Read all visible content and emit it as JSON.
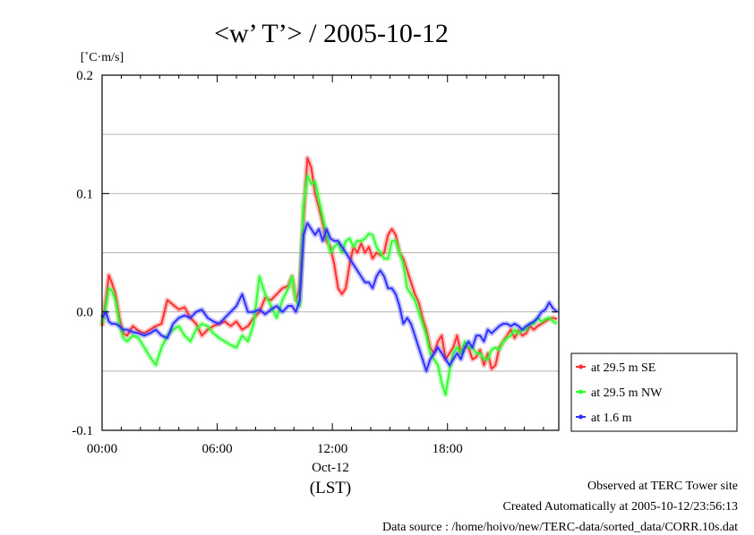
{
  "chart_data": {
    "type": "line",
    "title": "<w’ T’> / 2005-10-12",
    "ylabel": "[˚C·m/s]",
    "ylim": [
      -0.1,
      0.2
    ],
    "yticks": [
      {
        "value": 0.2,
        "label": "0.2"
      },
      {
        "value": 0.1,
        "label": "0.1"
      },
      {
        "value": 0.0,
        "label": "0.0"
      },
      {
        "value": -0.1,
        "label": "-0.1"
      }
    ],
    "ygrid": [
      0.15,
      0.1,
      0.05,
      0.0,
      -0.05
    ],
    "xlim": [
      0,
      23.8
    ],
    "xticks": [
      {
        "value": 0,
        "label": "00:00"
      },
      {
        "value": 6,
        "label": "06:00"
      },
      {
        "value": 12,
        "label": "12:00"
      },
      {
        "value": 18,
        "label": "18:00"
      }
    ],
    "xdate_label": "Oct-12",
    "xunit_label": "(LST)",
    "legend_position": "right",
    "series": [
      {
        "name": "at 29.5 m SE",
        "color": "#ff3030",
        "x": [
          0,
          0.2,
          0.35,
          0.5,
          0.7,
          0.9,
          1.1,
          1.3,
          1.6,
          1.9,
          2.2,
          2.5,
          2.8,
          3.1,
          3.4,
          3.7,
          4.0,
          4.3,
          4.6,
          4.9,
          5.2,
          5.5,
          5.8,
          6.1,
          6.4,
          6.7,
          7.0,
          7.3,
          7.6,
          7.9,
          8.2,
          8.5,
          8.8,
          9.1,
          9.4,
          9.7,
          9.9,
          10.1,
          10.3,
          10.5,
          10.7,
          10.9,
          11.1,
          11.3,
          11.5,
          11.7,
          11.9,
          12.1,
          12.3,
          12.5,
          12.7,
          12.9,
          13.1,
          13.3,
          13.5,
          13.7,
          13.9,
          14.1,
          14.3,
          14.5,
          14.7,
          14.9,
          15.1,
          15.3,
          15.5,
          15.7,
          15.9,
          16.1,
          16.3,
          16.5,
          16.7,
          16.9,
          17.1,
          17.3,
          17.5,
          17.7,
          17.9,
          18.1,
          18.3,
          18.5,
          18.7,
          18.9,
          19.1,
          19.3,
          19.5,
          19.7,
          19.9,
          20.1,
          20.3,
          20.5,
          20.7,
          20.9,
          21.1,
          21.3,
          21.5,
          21.7,
          21.9,
          22.1,
          22.3,
          22.5,
          22.7,
          22.9,
          23.1,
          23.3,
          23.5,
          23.7
        ],
        "values": [
          -0.012,
          0.01,
          0.031,
          0.025,
          0.015,
          -0.005,
          -0.018,
          -0.02,
          -0.012,
          -0.016,
          -0.018,
          -0.015,
          -0.012,
          -0.01,
          0.01,
          0.006,
          0.002,
          0.004,
          -0.005,
          -0.01,
          -0.02,
          -0.015,
          -0.012,
          -0.01,
          -0.008,
          -0.012,
          -0.008,
          -0.015,
          -0.012,
          -0.005,
          0.0,
          0.012,
          0.01,
          0.015,
          0.02,
          0.022,
          0.03,
          0.01,
          0.02,
          0.08,
          0.13,
          0.122,
          0.1,
          0.088,
          0.075,
          0.06,
          0.055,
          0.04,
          0.02,
          0.015,
          0.02,
          0.04,
          0.055,
          0.05,
          0.058,
          0.05,
          0.055,
          0.045,
          0.05,
          0.048,
          0.05,
          0.065,
          0.07,
          0.065,
          0.05,
          0.045,
          0.035,
          0.025,
          0.015,
          0.008,
          -0.005,
          -0.015,
          -0.03,
          -0.035,
          -0.025,
          -0.02,
          -0.04,
          -0.035,
          -0.03,
          -0.02,
          -0.035,
          -0.03,
          -0.03,
          -0.04,
          -0.038,
          -0.032,
          -0.045,
          -0.035,
          -0.048,
          -0.045,
          -0.03,
          -0.025,
          -0.02,
          -0.015,
          -0.022,
          -0.016,
          -0.02,
          -0.018,
          -0.012,
          -0.015,
          -0.012,
          -0.01,
          -0.008,
          -0.006,
          -0.005,
          -0.006
        ]
      },
      {
        "name": "at 29.5 m NW",
        "color": "#30ff30",
        "x": [
          0,
          0.2,
          0.35,
          0.5,
          0.7,
          0.9,
          1.1,
          1.3,
          1.6,
          1.9,
          2.2,
          2.5,
          2.8,
          3.1,
          3.4,
          3.7,
          4.0,
          4.3,
          4.6,
          4.9,
          5.2,
          5.5,
          5.8,
          6.1,
          6.4,
          6.7,
          7.0,
          7.3,
          7.6,
          7.9,
          8.2,
          8.5,
          8.8,
          9.1,
          9.4,
          9.7,
          9.9,
          10.1,
          10.3,
          10.5,
          10.7,
          10.9,
          11.1,
          11.3,
          11.5,
          11.7,
          11.9,
          12.1,
          12.3,
          12.5,
          12.7,
          12.9,
          13.1,
          13.3,
          13.5,
          13.7,
          13.9,
          14.1,
          14.3,
          14.5,
          14.7,
          14.9,
          15.1,
          15.3,
          15.5,
          15.7,
          15.9,
          16.1,
          16.3,
          16.5,
          16.7,
          16.9,
          17.1,
          17.3,
          17.5,
          17.7,
          17.9,
          18.1,
          18.3,
          18.5,
          18.7,
          18.9,
          19.1,
          19.3,
          19.5,
          19.7,
          19.9,
          20.1,
          20.3,
          20.5,
          20.7,
          20.9,
          21.1,
          21.3,
          21.5,
          21.7,
          21.9,
          22.1,
          22.3,
          22.5,
          22.7,
          22.9,
          23.1,
          23.3,
          23.5,
          23.7
        ],
        "values": [
          -0.01,
          0.005,
          0.02,
          0.018,
          0.01,
          -0.01,
          -0.022,
          -0.025,
          -0.02,
          -0.022,
          -0.03,
          -0.038,
          -0.045,
          -0.03,
          -0.02,
          -0.015,
          -0.012,
          -0.02,
          -0.025,
          -0.015,
          -0.01,
          -0.012,
          -0.018,
          -0.022,
          -0.025,
          -0.028,
          -0.03,
          -0.02,
          -0.025,
          -0.01,
          0.03,
          0.015,
          0.005,
          -0.005,
          0.01,
          0.02,
          0.03,
          0.01,
          0.005,
          0.09,
          0.115,
          0.108,
          0.11,
          0.095,
          0.08,
          0.065,
          0.05,
          0.055,
          0.058,
          0.05,
          0.06,
          0.062,
          0.055,
          0.06,
          0.06,
          0.062,
          0.066,
          0.065,
          0.055,
          0.05,
          0.045,
          0.045,
          0.06,
          0.06,
          0.05,
          0.04,
          0.02,
          0.015,
          0.01,
          0.0,
          -0.01,
          -0.02,
          -0.035,
          -0.04,
          -0.045,
          -0.06,
          -0.07,
          -0.05,
          -0.035,
          -0.03,
          -0.035,
          -0.025,
          -0.03,
          -0.03,
          -0.035,
          -0.035,
          -0.04,
          -0.04,
          -0.032,
          -0.03,
          -0.032,
          -0.025,
          -0.022,
          -0.02,
          -0.015,
          -0.018,
          -0.015,
          -0.015,
          -0.01,
          -0.01,
          -0.005,
          -0.008,
          -0.006,
          -0.005,
          -0.008,
          -0.01
        ]
      },
      {
        "name": "at 1.6 m",
        "color": "#3030ff",
        "x": [
          0,
          0.2,
          0.35,
          0.5,
          0.7,
          0.9,
          1.1,
          1.3,
          1.6,
          1.9,
          2.2,
          2.5,
          2.8,
          3.1,
          3.4,
          3.7,
          4.0,
          4.3,
          4.6,
          4.9,
          5.2,
          5.5,
          5.8,
          6.1,
          6.4,
          6.7,
          7.0,
          7.3,
          7.6,
          7.9,
          8.2,
          8.5,
          8.8,
          9.1,
          9.4,
          9.7,
          9.9,
          10.1,
          10.3,
          10.5,
          10.7,
          10.9,
          11.1,
          11.3,
          11.5,
          11.7,
          11.9,
          12.1,
          12.3,
          12.5,
          12.7,
          12.9,
          13.1,
          13.3,
          13.5,
          13.7,
          13.9,
          14.1,
          14.3,
          14.5,
          14.7,
          14.9,
          15.1,
          15.3,
          15.5,
          15.7,
          15.9,
          16.1,
          16.3,
          16.5,
          16.7,
          16.9,
          17.1,
          17.3,
          17.5,
          17.7,
          17.9,
          18.1,
          18.3,
          18.5,
          18.7,
          18.9,
          19.1,
          19.3,
          19.5,
          19.7,
          19.9,
          20.1,
          20.3,
          20.5,
          20.7,
          20.9,
          21.1,
          21.3,
          21.5,
          21.7,
          21.9,
          22.1,
          22.3,
          22.5,
          22.7,
          22.9,
          23.1,
          23.3,
          23.5,
          23.7
        ],
        "values": [
          -0.005,
          0.0,
          -0.008,
          -0.01,
          -0.01,
          -0.012,
          -0.015,
          -0.015,
          -0.017,
          -0.018,
          -0.02,
          -0.018,
          -0.015,
          -0.02,
          -0.022,
          -0.01,
          -0.005,
          -0.003,
          -0.005,
          0.0,
          0.002,
          -0.005,
          -0.008,
          -0.01,
          -0.005,
          0.0,
          0.005,
          0.015,
          0.0,
          0.0,
          0.002,
          -0.002,
          0.002,
          0.005,
          0.0,
          0.005,
          0.005,
          0.0,
          0.01,
          0.065,
          0.075,
          0.07,
          0.065,
          0.07,
          0.06,
          0.07,
          0.062,
          0.06,
          0.06,
          0.055,
          0.05,
          0.045,
          0.04,
          0.035,
          0.03,
          0.025,
          0.025,
          0.02,
          0.03,
          0.035,
          0.03,
          0.02,
          0.02,
          0.015,
          0.005,
          -0.01,
          -0.005,
          -0.01,
          -0.02,
          -0.03,
          -0.04,
          -0.05,
          -0.04,
          -0.035,
          -0.03,
          -0.035,
          -0.04,
          -0.045,
          -0.04,
          -0.035,
          -0.04,
          -0.03,
          -0.025,
          -0.03,
          -0.02,
          -0.02,
          -0.025,
          -0.015,
          -0.018,
          -0.015,
          -0.012,
          -0.01,
          -0.01,
          -0.012,
          -0.01,
          -0.012,
          -0.015,
          -0.012,
          -0.01,
          -0.008,
          -0.005,
          0.0,
          0.002,
          0.008,
          0.003,
          0.0
        ]
      }
    ]
  },
  "footer": {
    "line1": "Observed at TERC Tower site",
    "line2": "Created Automatically at 2005-10-12/23:56:13",
    "line3": "Data source : /home/hoivo/new/TERC-data/sorted_data/CORR.10s.dat"
  }
}
